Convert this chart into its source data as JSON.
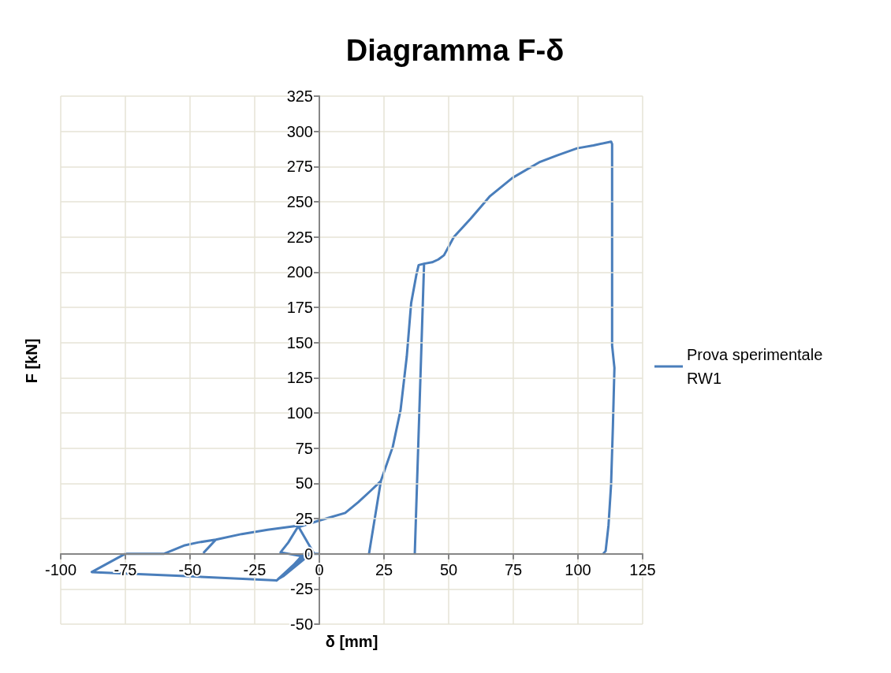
{
  "chart_data": {
    "type": "line",
    "title": "Diagramma F-δ",
    "xlabel": "δ [mm]",
    "ylabel": "F [kN]",
    "xlim": [
      -100,
      125
    ],
    "xticks": [
      -100,
      -75,
      -50,
      -25,
      0,
      25,
      50,
      75,
      100,
      125
    ],
    "ylim": [
      -50,
      325
    ],
    "yticks": [
      -50,
      -25,
      0,
      25,
      50,
      75,
      100,
      125,
      150,
      175,
      200,
      225,
      250,
      275,
      300,
      325
    ],
    "grid": true,
    "legend": "right",
    "marker": "none",
    "line_style": "solid",
    "series": [
      {
        "name": "Prova sperimentale RW1",
        "color": "#4a7ebb",
        "x": [
          0,
          -6,
          -10,
          -16.5,
          -12,
          -6,
          -14,
          -16,
          -6,
          -15,
          -12,
          -8,
          -20,
          -30,
          -40,
          -44.6,
          -40,
          -47,
          -52,
          -60,
          -75,
          -88,
          -50,
          -16.5,
          -6,
          -2,
          -8,
          0,
          10,
          15,
          20,
          23.8,
          19.2,
          23.8,
          28.4,
          31.4,
          33.8,
          35.5,
          37.5,
          38.4,
          40.5,
          36.9,
          40.5,
          43.6,
          46,
          48.2,
          52,
          58.5,
          66,
          74.7,
          85,
          92,
          99.7,
          106,
          112.8,
          113.2,
          113.2,
          114.1,
          113.5,
          112.8,
          111.8,
          110.7,
          109.8
        ],
        "values": [
          0,
          0,
          -8,
          -19,
          -12,
          -4,
          -16,
          -18,
          -2,
          1,
          8,
          20,
          17,
          14,
          10,
          1,
          10,
          8,
          6,
          0,
          0,
          -13,
          -16,
          -19,
          -2,
          0,
          19,
          23.6,
          29,
          36.5,
          45,
          51.7,
          0,
          51.7,
          76,
          102,
          140,
          178,
          198,
          205,
          206,
          0,
          206,
          207,
          209,
          212,
          225,
          238,
          254,
          267,
          278,
          283,
          288,
          290,
          292.7,
          291,
          148,
          132,
          90,
          49,
          20,
          2,
          0
        ]
      }
    ]
  }
}
